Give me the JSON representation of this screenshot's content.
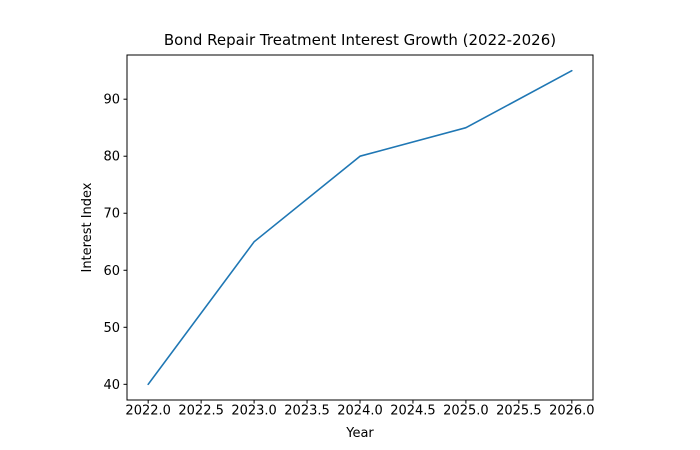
{
  "chart_data": {
    "type": "line",
    "title": "Bond Repair Treatment Interest Growth (2022-2026)",
    "xlabel": "Year",
    "ylabel": "Interest Index",
    "x": [
      2022,
      2023,
      2024,
      2025,
      2026
    ],
    "series": [
      {
        "name": "Interest Index",
        "values": [
          40,
          65,
          80,
          85,
          95
        ]
      }
    ],
    "x_ticks": [
      2022.0,
      2022.5,
      2023.0,
      2023.5,
      2024.0,
      2024.5,
      2025.0,
      2025.5,
      2026.0
    ],
    "x_tick_labels": [
      "2022.0",
      "2022.5",
      "2023.0",
      "2023.5",
      "2024.0",
      "2024.5",
      "2025.0",
      "2025.5",
      "2026.0"
    ],
    "y_ticks": [
      40,
      50,
      60,
      70,
      80,
      90
    ],
    "y_tick_labels": [
      "40",
      "50",
      "60",
      "70",
      "80",
      "90"
    ],
    "xlim": [
      2021.8,
      2026.2
    ],
    "ylim": [
      37.25,
      97.75
    ],
    "line_color": "#1f77b4",
    "spine_color": "#000000",
    "grid": false,
    "legend": null
  }
}
